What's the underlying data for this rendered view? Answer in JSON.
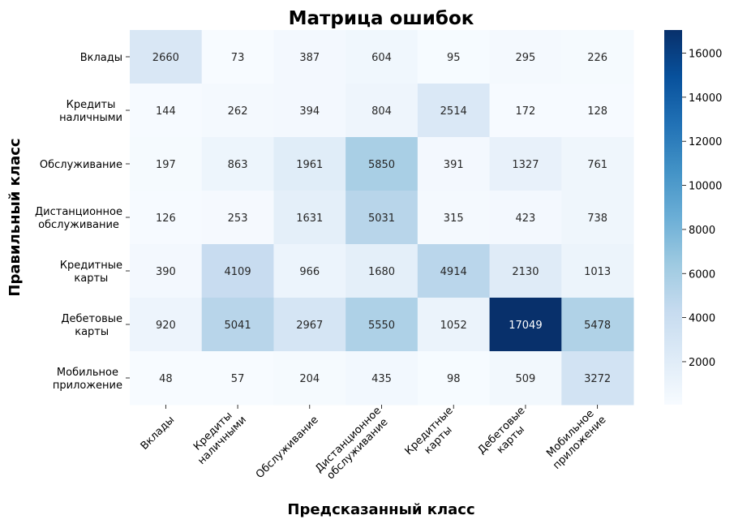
{
  "chart_data": {
    "type": "heatmap",
    "title": "Матрица ошибок",
    "xlabel": "Предсказанный класс",
    "ylabel": "Правильный класс",
    "x_categories": [
      [
        "Вклады"
      ],
      [
        "Кредиты",
        "наличными"
      ],
      [
        "Обслуживание"
      ],
      [
        "Дистанционное",
        "обслуживание"
      ],
      [
        "Кредитные",
        "карты"
      ],
      [
        "Дебетовые",
        "карты"
      ],
      [
        "Мобильное",
        "приложение"
      ]
    ],
    "y_categories": [
      [
        "Вклады"
      ],
      [
        "Кредиты",
        "наличными"
      ],
      [
        "Обслуживание"
      ],
      [
        "Дистанционное",
        "обслуживание"
      ],
      [
        "Кредитные",
        "карты"
      ],
      [
        "Дебетовые",
        "карты"
      ],
      [
        "Мобильное",
        "приложение"
      ]
    ],
    "values": [
      [
        2660,
        73,
        387,
        604,
        95,
        295,
        226
      ],
      [
        144,
        262,
        394,
        804,
        2514,
        172,
        128
      ],
      [
        197,
        863,
        1961,
        5850,
        391,
        1327,
        761
      ],
      [
        126,
        253,
        1631,
        5031,
        315,
        423,
        738
      ],
      [
        390,
        4109,
        966,
        1680,
        4914,
        2130,
        1013
      ],
      [
        920,
        5041,
        2967,
        5550,
        1052,
        17049,
        5478
      ],
      [
        48,
        57,
        204,
        435,
        98,
        509,
        3272
      ]
    ],
    "colormap": "Blues",
    "colormap_stops": [
      "#f7fbff",
      "#deebf7",
      "#c6dbef",
      "#9ecae1",
      "#6baed6",
      "#4292c6",
      "#2171b5",
      "#08519c",
      "#08306b"
    ],
    "color_range": [
      48,
      17049
    ],
    "colorbar_ticks": [
      2000,
      4000,
      6000,
      8000,
      10000,
      12000,
      14000,
      16000
    ],
    "annotation_dark_color": "#262626",
    "annotation_light_color": "#ffffff"
  }
}
